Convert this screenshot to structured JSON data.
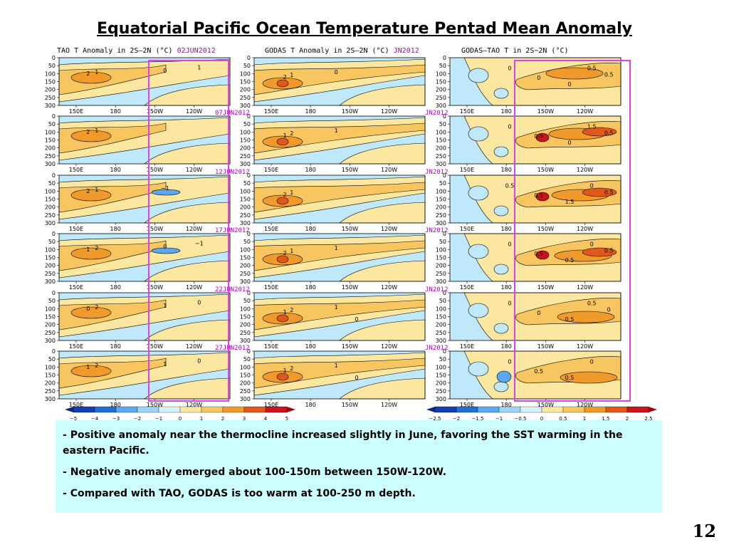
{
  "title": "Equatorial Pacific  Ocean Temperature Pentad Mean Anomaly",
  "columns": [
    {
      "name": "TAO  T Anomaly  in  2S–2N  (°C)",
      "dates": [
        "02JUN2012",
        "07JUN2012",
        "12JUN2012",
        "17JUN2012",
        "22JUN2012",
        "27JUN2012"
      ]
    },
    {
      "name": "GODAS  T Anomaly  in  2S–2N  (°C)",
      "dates": [
        "JN2012",
        "JN2012",
        "JN2012",
        "JN2012",
        "JN2012",
        "JN2012"
      ]
    },
    {
      "name": "GODAS—TAO  T  in  2S~2N  (°C)",
      "dates": []
    }
  ],
  "header_date_first": "02JUN2012",
  "header_date_second": "JN2012",
  "chart_data": {
    "type": "heatmap",
    "x_ticks": [
      "150E",
      "180",
      "150W",
      "120W"
    ],
    "y_ticks": [
      "0",
      "50",
      "100",
      "150",
      "200",
      "250",
      "300"
    ],
    "ylim": [
      300,
      0
    ],
    "colorbar_left": [
      "−5",
      "−4",
      "−3",
      "−2",
      "−1",
      "0",
      "1",
      "2",
      "3",
      "4",
      "5"
    ],
    "colorbar_right": [
      "−2.5",
      "−2",
      "−1.5",
      "−1",
      "−0.5",
      "0",
      "0.5",
      "1",
      "1.5",
      "2",
      "2.5"
    ],
    "contour_labels": {
      "tao": [
        [
          "2",
          "1",
          "0",
          "1"
        ],
        [
          "2",
          "1"
        ],
        [
          "2",
          "1",
          "−1"
        ],
        [
          "1",
          "2",
          "0",
          "−1"
        ],
        [
          "0",
          "2",
          "1",
          "0"
        ],
        [
          "1",
          "2",
          "1",
          "0"
        ]
      ],
      "godas": [
        [
          "2",
          "1",
          "0"
        ],
        [
          "1",
          "2",
          "1"
        ],
        [
          "2",
          "1"
        ],
        [
          "2",
          "1",
          "1"
        ],
        [
          "1",
          "2",
          "1",
          "0"
        ],
        [
          "1",
          "2",
          "1",
          "0"
        ]
      ],
      "diff": [
        [
          "0",
          "0",
          "0",
          "0.5",
          "0.5"
        ],
        [
          "0",
          "0.5",
          "0",
          "1.5",
          "0.5"
        ],
        [
          "0.5",
          "0.5",
          "1.5",
          "0",
          "0.5"
        ],
        [
          "0",
          "0.5",
          "0.5",
          "0",
          "0.5"
        ],
        [
          "0",
          "0",
          "0.5",
          "0.5",
          "0"
        ],
        [
          "0",
          "0.5",
          "0.5",
          "0"
        ]
      ]
    }
  },
  "notes": [
    "Positive anomaly near the thermocline increased slightly in June, favoring the SST warming in the eastern Pacific.",
    "Negative anomaly emerged about 100-150m between 150W-120W.",
    "Compared with TAO, GODAS is too warm at 100-250 m depth."
  ],
  "colors": {
    "neg3": "#1e6ed8",
    "neg2": "#5aa8f0",
    "neg1": "#bfe8fb",
    "zero": "#fbe7a0",
    "pos1": "#f8c660",
    "pos2": "#f09a2c",
    "pos3": "#e0581c",
    "pos4": "#c8141c",
    "box": "#e040e8",
    "date": "#b000c0",
    "notes_bg": "#ccffff"
  },
  "page_number": "12"
}
